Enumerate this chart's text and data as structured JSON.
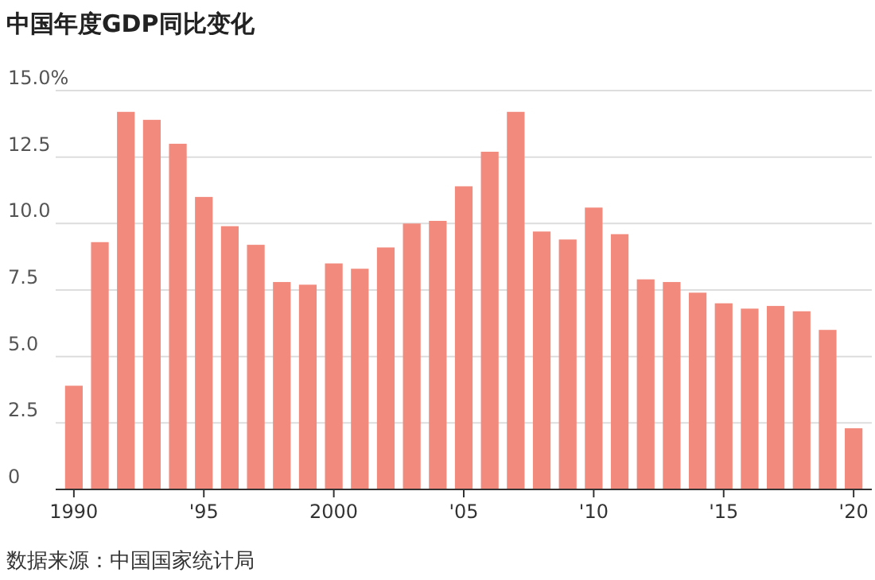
{
  "chart_data": {
    "type": "bar",
    "title": "中国年度GDP同比变化",
    "x": [
      1990,
      1991,
      1992,
      1993,
      1994,
      1995,
      1996,
      1997,
      1998,
      1999,
      2000,
      2001,
      2002,
      2003,
      2004,
      2005,
      2006,
      2007,
      2008,
      2009,
      2010,
      2011,
      2012,
      2013,
      2014,
      2015,
      2016,
      2017,
      2018,
      2019,
      2020
    ],
    "values": [
      3.9,
      9.3,
      14.2,
      13.9,
      13.0,
      11.0,
      9.9,
      9.2,
      7.8,
      7.7,
      8.5,
      8.3,
      9.1,
      10.0,
      10.1,
      11.4,
      12.7,
      14.2,
      9.7,
      9.4,
      10.6,
      9.6,
      7.9,
      7.8,
      7.4,
      7.0,
      6.8,
      6.9,
      6.7,
      6.0,
      2.3
    ],
    "color": "#f28b7e",
    "xlim": [
      1989.3,
      2020.7
    ],
    "xticks": [
      1990,
      {
        "value": 1995,
        "label": "'95"
      },
      2000,
      {
        "value": 2005,
        "label": "'05"
      },
      {
        "value": 2010,
        "label": "'10"
      },
      {
        "value": 2015,
        "label": "'15"
      },
      {
        "value": 2020,
        "label": "'20"
      }
    ],
    "ylim": [
      0,
      15
    ],
    "yticks": [
      0,
      2.5,
      {
        "value": 5,
        "label": "5.0"
      },
      {
        "value": 7.5,
        "label": "7.5"
      },
      {
        "value": 10,
        "label": "10.0"
      },
      {
        "value": 12.5,
        "label": "12.5"
      },
      {
        "value": 15,
        "label": "15.0%"
      }
    ],
    "grid": "y",
    "annotations": [
      "数据来源：中国国家统计局"
    ]
  }
}
